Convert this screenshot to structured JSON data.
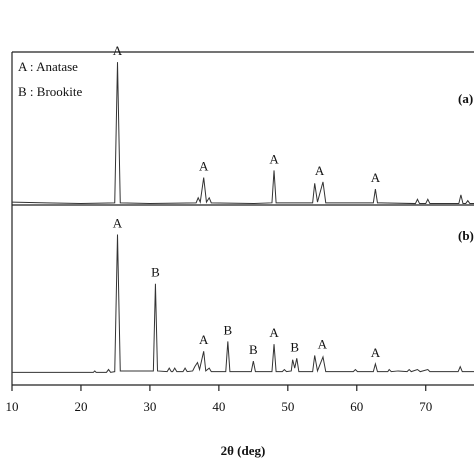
{
  "chart_data": [
    {
      "type": "line",
      "panel_label": "(a)",
      "color": "#333333",
      "legend": [
        "A : Anatase",
        "B : Brookite"
      ],
      "xlim": [
        10,
        77
      ],
      "ylim": [
        1,
        107
      ],
      "x": [
        10,
        15,
        20,
        24.9,
        25.3,
        25.7,
        30,
        36.7,
        37.0,
        37.3,
        37.8,
        38.2,
        38.6,
        38.9,
        45,
        47.7,
        48.0,
        48.3,
        53.6,
        53.9,
        54.3,
        55.1,
        55.5,
        62.4,
        62.7,
        63.0,
        68.5,
        68.8,
        69.1,
        70.0,
        70.3,
        70.6,
        74.8,
        75.1,
        75.4,
        75.8,
        76.1,
        76.4,
        77
      ],
      "values": [
        3,
        2.5,
        2,
        2.5,
        100,
        2.5,
        2,
        2.5,
        6,
        3,
        20,
        3,
        6,
        2.5,
        2,
        2.5,
        25,
        2.5,
        2.5,
        16,
        3,
        17,
        2.5,
        2.5,
        12,
        2.5,
        2,
        5,
        2,
        2,
        5,
        2,
        2,
        8,
        2,
        2,
        4,
        2,
        2
      ],
      "peak_labels": [
        {
          "x": 25.3,
          "value": 100,
          "label": "A"
        },
        {
          "x": 37.8,
          "value": 20,
          "label": "A"
        },
        {
          "x": 48.0,
          "value": 25,
          "label": "A"
        },
        {
          "x": 54.6,
          "value": 17,
          "label": "A"
        },
        {
          "x": 62.7,
          "value": 12,
          "label": "A"
        }
      ]
    },
    {
      "type": "line",
      "panel_label": "(b)",
      "color": "#333333",
      "xlim": [
        10,
        77
      ],
      "ylim": [
        -7,
        121
      ],
      "xticks": [
        10,
        20,
        30,
        40,
        50,
        60,
        70
      ],
      "xlabel": "2θ (deg)",
      "x": [
        10,
        21.8,
        22,
        22.2,
        23.7,
        24.0,
        24.3,
        24.9,
        25.3,
        25.7,
        30.5,
        30.8,
        31.1,
        32.5,
        32.8,
        33.1,
        33.3,
        33.6,
        33.9,
        34.8,
        35.1,
        35.4,
        36.2,
        36.5,
        36.9,
        37.2,
        37.8,
        38.1,
        38.6,
        38.9,
        41.0,
        41.3,
        41.6,
        44.7,
        45.0,
        45.3,
        47.7,
        48.0,
        48.3,
        49.2,
        49.5,
        49.8,
        50.5,
        50.7,
        51.0,
        51.3,
        51.6,
        53.6,
        53.9,
        54.3,
        55.1,
        55.5,
        59.5,
        59.8,
        60.1,
        62.4,
        62.7,
        63.0,
        64.5,
        64.7,
        65,
        66,
        67.3,
        67.6,
        67.9,
        68.8,
        69.2,
        70.3,
        70.6,
        74.7,
        75.0,
        75.3,
        77
      ],
      "values": [
        2,
        2,
        3,
        2,
        2,
        4,
        2,
        2.5,
        100,
        3,
        3,
        65,
        3,
        2.5,
        5,
        2.5,
        2.5,
        5,
        2.5,
        2.5,
        5,
        2.5,
        3,
        6,
        9,
        4,
        17,
        3,
        5,
        2.5,
        2.5,
        24,
        2.5,
        2.5,
        10,
        2.5,
        2.5,
        22,
        2.5,
        2.5,
        4,
        2.5,
        3,
        11,
        5,
        12,
        2.5,
        2.5,
        14,
        3,
        13,
        2.5,
        2.5,
        4,
        2.5,
        2.5,
        8,
        2.5,
        2.5,
        4,
        2.5,
        3,
        2.5,
        4,
        2.5,
        4,
        2.5,
        4,
        2.5,
        2.5,
        6,
        2.5,
        2.5
      ],
      "peak_labels": [
        {
          "x": 25.3,
          "value": 100,
          "label": "A"
        },
        {
          "x": 30.8,
          "value": 65,
          "label": "B"
        },
        {
          "x": 37.8,
          "value": 17,
          "label": "A"
        },
        {
          "x": 41.3,
          "value": 24,
          "label": "B"
        },
        {
          "x": 45.0,
          "value": 10,
          "label": "B"
        },
        {
          "x": 48.0,
          "value": 22,
          "label": "A"
        },
        {
          "x": 51.0,
          "value": 12,
          "label": "B"
        },
        {
          "x": 55.0,
          "value": 14,
          "label": "A"
        },
        {
          "x": 62.7,
          "value": 8,
          "label": "A"
        }
      ]
    }
  ]
}
